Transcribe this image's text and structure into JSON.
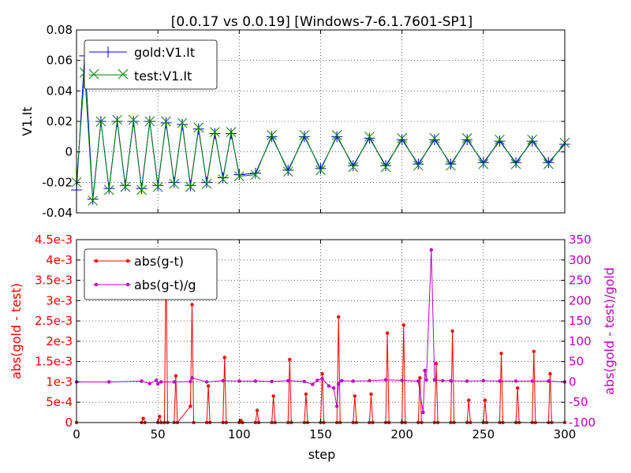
{
  "figure_title": "[0.0.17 vs 0.0.19] [Windows-7-6.1.7601-SP1]",
  "chart_data": [
    {
      "type": "line",
      "title": "[0.0.17 vs 0.0.19] [Windows-7-6.1.7601-SP1]",
      "xlabel": "",
      "ylabel": "V1.It",
      "xlim": [
        0,
        300
      ],
      "ylim": [
        -0.04,
        0.08
      ],
      "x_ticks": [
        0,
        50,
        100,
        150,
        200,
        250,
        300
      ],
      "y_ticks": [
        -0.04,
        -0.02,
        0,
        0.02,
        0.04,
        0.06,
        0.08
      ],
      "y_tick_labels": [
        "-0.04",
        "-0.02",
        "0",
        "0.02",
        "0.04",
        "0.06",
        "0.08"
      ],
      "grid": true,
      "legend_position": "top-left",
      "series_style": [
        {
          "name": "gold:V1.It",
          "color": "#0000ff",
          "marker": "+"
        },
        {
          "name": "test:V1.It",
          "color": "#008000",
          "marker": "x"
        }
      ],
      "x": [
        0,
        5,
        10,
        15,
        20,
        25,
        30,
        35,
        40,
        45,
        50,
        55,
        60,
        65,
        70,
        75,
        80,
        85,
        90,
        95,
        100,
        110,
        120,
        130,
        140,
        150,
        160,
        170,
        180,
        190,
        200,
        210,
        220,
        230,
        240,
        250,
        260,
        270,
        280,
        290,
        300
      ],
      "series": [
        {
          "name": "gold:V1.It",
          "values": [
            -0.025,
            0.063,
            -0.031,
            0.02,
            -0.024,
            0.02,
            -0.022,
            0.02,
            -0.024,
            0.02,
            -0.022,
            0.019,
            -0.02,
            0.018,
            -0.022,
            0.015,
            -0.02,
            0.012,
            -0.017,
            0.012,
            -0.015,
            -0.014,
            0.01,
            -0.012,
            0.01,
            -0.011,
            0.01,
            -0.009,
            0.009,
            -0.009,
            0.008,
            -0.008,
            0.008,
            -0.008,
            0.008,
            -0.007,
            0.007,
            -0.007,
            0.007,
            -0.007,
            0.005
          ]
        },
        {
          "name": "test:V1.It",
          "values": [
            -0.02,
            0.052,
            -0.032,
            0.02,
            -0.025,
            0.021,
            -0.023,
            0.021,
            -0.025,
            0.02,
            -0.023,
            0.02,
            -0.021,
            0.019,
            -0.023,
            0.016,
            -0.021,
            0.013,
            -0.018,
            0.013,
            -0.016,
            -0.015,
            0.011,
            -0.013,
            0.011,
            -0.012,
            0.011,
            -0.01,
            0.01,
            -0.01,
            0.009,
            -0.009,
            0.009,
            -0.009,
            0.009,
            -0.008,
            0.008,
            -0.008,
            0.008,
            -0.008,
            0.006
          ]
        }
      ]
    },
    {
      "type": "line",
      "title": "",
      "xlabel": "step",
      "ylabel": "abs(gold - test)",
      "y2label": "abs(gold - test)/gold",
      "xlim": [
        0,
        300
      ],
      "ylim": [
        0,
        0.0045
      ],
      "y2lim": [
        -100,
        350
      ],
      "x_ticks": [
        0,
        50,
        100,
        150,
        200,
        250,
        300
      ],
      "y_ticks": [
        0,
        0.0005,
        0.001,
        0.0015,
        0.002,
        0.0025,
        0.003,
        0.0035,
        0.004,
        0.0045
      ],
      "y_tick_labels": [
        "0",
        "5e-4",
        "1e-3",
        "1.5e-3",
        "2e-3",
        "2.5e-3",
        "3e-3",
        "3.5e-3",
        "4e-3",
        "4.5e-3"
      ],
      "y2_ticks": [
        -100,
        -50,
        0,
        50,
        100,
        150,
        200,
        250,
        300,
        350
      ],
      "y2_tick_labels": [
        "-100",
        "-50",
        "0",
        "50",
        "100",
        "150",
        "200",
        "250",
        "300",
        "350"
      ],
      "grid": true,
      "legend_position": "top-left",
      "series_style": [
        {
          "name": "abs(g-t)",
          "color": "#ff0000",
          "axis": "left"
        },
        {
          "name": "abs(g-t)/g",
          "color": "#bf00bf",
          "axis": "right"
        }
      ],
      "series": [
        {
          "name": "abs(g-t)",
          "axis": "left",
          "x": [
            0,
            40,
            41,
            42,
            50,
            51,
            52,
            54,
            55,
            56,
            60,
            61,
            62,
            70,
            71,
            72,
            80,
            81,
            82,
            90,
            91,
            92,
            100,
            101,
            102,
            110,
            111,
            112,
            120,
            121,
            122,
            130,
            131,
            132,
            140,
            141,
            142,
            150,
            151,
            152,
            160,
            161,
            162,
            170,
            171,
            172,
            180,
            181,
            182,
            190,
            191,
            192,
            200,
            201,
            202,
            210,
            211,
            212,
            220,
            221,
            222,
            230,
            231,
            232,
            240,
            241,
            242,
            250,
            251,
            252,
            260,
            261,
            262,
            270,
            271,
            272,
            280,
            281,
            282,
            290,
            291,
            292,
            300
          ],
          "values": [
            0,
            0,
            0.0001,
            0,
            0,
            0.00015,
            0,
            0,
            0.0041,
            0,
            0,
            0.00115,
            0,
            0.0004,
            0.0029,
            0,
            0,
            0.0009,
            0,
            0,
            0.0016,
            0,
            0,
            5e-05,
            0,
            0,
            0.0003,
            0,
            0,
            0.00065,
            0,
            0,
            0.00155,
            0,
            0,
            0.0007,
            0,
            0,
            0.0012,
            0,
            0,
            0.0026,
            0,
            0,
            0.00065,
            0,
            0,
            0.0007,
            0,
            0,
            0.0022,
            0,
            0,
            0.0024,
            0,
            0,
            0.0011,
            0,
            0,
            0.00145,
            0,
            0,
            0.00225,
            0,
            0,
            0.00055,
            0,
            0,
            0.00055,
            0,
            0,
            0.0017,
            0,
            0,
            0.00085,
            0,
            0,
            0.00175,
            0,
            0,
            0.0012,
            0,
            0
          ]
        },
        {
          "name": "abs(g-t)/g",
          "axis": "right",
          "x": [
            0,
            20,
            40,
            45,
            49,
            50,
            52,
            60,
            70,
            71,
            80,
            90,
            100,
            110,
            120,
            130,
            140,
            145,
            148,
            151,
            155,
            158,
            160,
            161,
            163,
            170,
            180,
            190,
            200,
            210,
            213,
            214,
            215,
            218,
            220,
            225,
            230,
            240,
            250,
            260,
            270,
            280,
            290,
            300
          ],
          "values": [
            0,
            0,
            2,
            -4,
            4,
            -5,
            0,
            0,
            1,
            10,
            0,
            3,
            2,
            2,
            1,
            3,
            1,
            -6,
            4,
            8,
            -10,
            -15,
            -60,
            -5,
            3,
            2,
            3,
            5,
            4,
            2,
            -75,
            28,
            5,
            325,
            5,
            3,
            3,
            2,
            3,
            2,
            2,
            2,
            2,
            0
          ]
        }
      ]
    }
  ]
}
